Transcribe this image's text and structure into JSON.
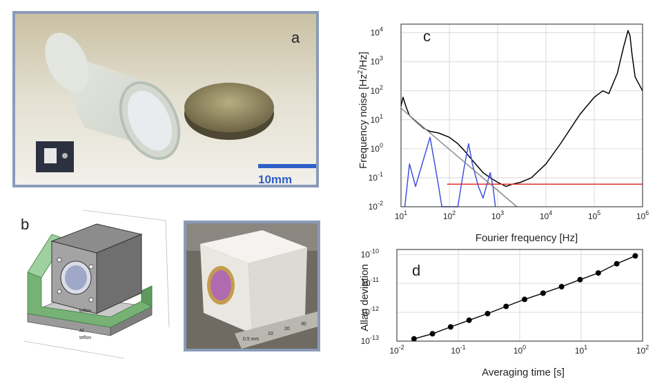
{
  "panel_a": {
    "letter": "a",
    "scale_bar_label": "10mm",
    "scale_bar_color": "#2f5fc8"
  },
  "panel_b": {
    "letter": "b",
    "labels": {
      "teflon_front": "teflon",
      "al": "Al",
      "teflon_base": "teflon"
    },
    "ruler_marks": [
      "0.5 mm",
      "10",
      "20",
      "30"
    ],
    "colors": {
      "green": "#6aa56a",
      "grey": "#9a9a9a"
    }
  },
  "panel_c": {
    "letter": "c",
    "xlabel": "Fourier frequency [Hz]",
    "ylabel_main": "Frequency noise [Hz",
    "ylabel_sup": "2",
    "ylabel_tail": "/Hz]",
    "x_ticks": [
      {
        "base": "10",
        "exp": "1"
      },
      {
        "base": "10",
        "exp": "2"
      },
      {
        "base": "10",
        "exp": "3"
      },
      {
        "base": "10",
        "exp": "4"
      },
      {
        "base": "10",
        "exp": "5"
      },
      {
        "base": "10",
        "exp": "6"
      }
    ],
    "y_ticks": [
      {
        "base": "10",
        "exp": "-2"
      },
      {
        "base": "10",
        "exp": "-1"
      },
      {
        "base": "10",
        "exp": "0"
      },
      {
        "base": "10",
        "exp": "1"
      },
      {
        "base": "10",
        "exp": "2"
      },
      {
        "base": "10",
        "exp": "3"
      },
      {
        "base": "10",
        "exp": "4"
      }
    ]
  },
  "panel_d": {
    "letter": "d",
    "xlabel": "Averaging time [s]",
    "ylabel": "Allan deviation",
    "x_ticks": [
      {
        "base": "10",
        "exp": "-2"
      },
      {
        "base": "10",
        "exp": "-1"
      },
      {
        "base": "10",
        "exp": "0"
      },
      {
        "base": "10",
        "exp": "1"
      },
      {
        "base": "10",
        "exp": "2"
      }
    ],
    "y_ticks": [
      {
        "base": "10",
        "exp": "-13"
      },
      {
        "base": "10",
        "exp": "-12"
      },
      {
        "base": "10",
        "exp": "-11"
      },
      {
        "base": "10",
        "exp": "-10"
      }
    ]
  },
  "chart_data": [
    {
      "type": "line",
      "xlabel": "Fourier frequency [Hz]",
      "ylabel": "Frequency noise [Hz^2/Hz]",
      "xscale": "log",
      "yscale": "log",
      "xlim": [
        10,
        1000000
      ],
      "ylim": [
        0.01,
        20000
      ],
      "grid": true,
      "series": [
        {
          "color": "#000000",
          "x": [
            10,
            11,
            13,
            15,
            20,
            30,
            40,
            60,
            100,
            150,
            200,
            300,
            500,
            700,
            1000,
            1500,
            2000,
            3000,
            5000,
            10000,
            20000,
            50000,
            100000,
            150000,
            200000,
            300000,
            400000,
            500000,
            550000,
            600000,
            700000,
            1000000
          ],
          "y": [
            30,
            60,
            25,
            14,
            9,
            5,
            4,
            3.5,
            2.5,
            1.5,
            0.9,
            0.4,
            0.15,
            0.1,
            0.07,
            0.05,
            0.06,
            0.07,
            0.1,
            0.3,
            1.5,
            15,
            60,
            100,
            80,
            400,
            3000,
            12000,
            8000,
            2000,
            300,
            100
          ]
        },
        {
          "color": "#3f4fe0",
          "x": [
            12,
            15,
            20,
            30,
            40,
            50,
            60,
            70,
            90,
            150,
            200,
            250,
            300,
            400,
            500,
            700,
            800,
            900
          ],
          "y": [
            0.01,
            0.3,
            0.05,
            0.5,
            2.5,
            0.3,
            0.05,
            0.01,
            0.01,
            0.01,
            0.2,
            1.5,
            0.3,
            0.05,
            0.02,
            0.15,
            0.05,
            0.01
          ]
        },
        {
          "color": "#e03030",
          "x": [
            90,
            1000000
          ],
          "y": [
            0.06,
            0.06
          ]
        },
        {
          "color": "#8a8a8a",
          "x": [
            10,
            2500
          ],
          "y": [
            25,
            0.01
          ]
        }
      ]
    },
    {
      "type": "line",
      "xlabel": "Averaging time [s]",
      "ylabel": "Allan deviation",
      "xscale": "log",
      "yscale": "log",
      "xlim": [
        0.01,
        100
      ],
      "ylim": [
        1e-13,
        1.5e-10
      ],
      "grid": true,
      "series": [
        {
          "color": "#000000",
          "x": [
            0.019,
            0.038,
            0.075,
            0.15,
            0.3,
            0.6,
            1.2,
            2.4,
            4.8,
            9.6,
            19,
            38,
            76
          ],
          "y": [
            1.2e-13,
            1.8e-13,
            3.1e-13,
            5.3e-13,
            9e-13,
            1.6e-12,
            2.8e-12,
            4.6e-12,
            7.7e-12,
            1.35e-11,
            2.3e-11,
            4.8e-11,
            9e-11
          ]
        }
      ]
    }
  ]
}
